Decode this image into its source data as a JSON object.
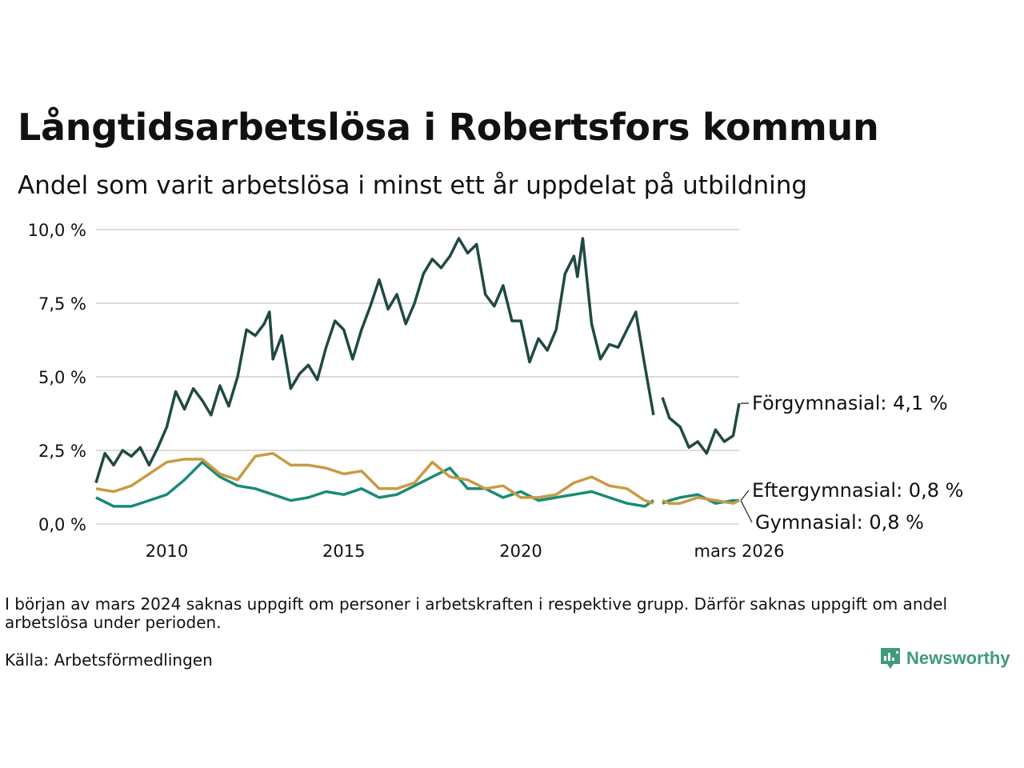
{
  "title": "Långtidsarbetslösa i Robertsfors kommun",
  "subtitle": "Andel som varit arbetslösa i minst ett år uppdelat på utbildning",
  "footnote": "I början av mars 2024 saknas uppgift om personer i arbetskraften i respektive grupp. Därför saknas uppgift om andel arbetslösa under perioden.",
  "source": "Källa: Arbetsförmedlingen",
  "logo_text": "Newsworthy",
  "chart_data": {
    "type": "line",
    "title": "Långtidsarbetslösa i Robertsfors kommun",
    "ylim": [
      0,
      10
    ],
    "y_ticks": [
      0,
      2.5,
      5,
      7.5,
      10
    ],
    "y_tick_labels": [
      "0,0 %",
      "2,5 %",
      "5,0 %",
      "7,5 %",
      "10,0 %"
    ],
    "x_range": [
      2008.0,
      2026.17
    ],
    "x_ticks": [
      2010,
      2015,
      2020,
      2026.17
    ],
    "x_tick_labels": [
      "2010",
      "2015",
      "2020",
      "mars 2026"
    ],
    "gap": [
      2023.75,
      2024.0
    ],
    "series": [
      {
        "name": "Förgymnasial",
        "label": "Förgymnasial: 4,1 %",
        "color": "#1f4a43",
        "points": [
          [
            2008.0,
            1.4
          ],
          [
            2008.25,
            2.4
          ],
          [
            2008.5,
            2.0
          ],
          [
            2008.75,
            2.5
          ],
          [
            2009.0,
            2.3
          ],
          [
            2009.25,
            2.6
          ],
          [
            2009.5,
            2.0
          ],
          [
            2009.75,
            2.6
          ],
          [
            2010.0,
            3.3
          ],
          [
            2010.25,
            4.5
          ],
          [
            2010.5,
            3.9
          ],
          [
            2010.75,
            4.6
          ],
          [
            2011.0,
            4.2
          ],
          [
            2011.25,
            3.7
          ],
          [
            2011.5,
            4.7
          ],
          [
            2011.75,
            4.0
          ],
          [
            2012.0,
            5.0
          ],
          [
            2012.25,
            6.6
          ],
          [
            2012.5,
            6.4
          ],
          [
            2012.75,
            6.8
          ],
          [
            2012.9,
            7.2
          ],
          [
            2013.0,
            5.6
          ],
          [
            2013.25,
            6.4
          ],
          [
            2013.5,
            4.6
          ],
          [
            2013.75,
            5.1
          ],
          [
            2014.0,
            5.4
          ],
          [
            2014.25,
            4.9
          ],
          [
            2014.5,
            6.0
          ],
          [
            2014.75,
            6.9
          ],
          [
            2015.0,
            6.6
          ],
          [
            2015.25,
            5.6
          ],
          [
            2015.5,
            6.6
          ],
          [
            2015.75,
            7.4
          ],
          [
            2016.0,
            8.3
          ],
          [
            2016.25,
            7.3
          ],
          [
            2016.5,
            7.8
          ],
          [
            2016.75,
            6.8
          ],
          [
            2017.0,
            7.5
          ],
          [
            2017.25,
            8.5
          ],
          [
            2017.5,
            9.0
          ],
          [
            2017.75,
            8.7
          ],
          [
            2018.0,
            9.1
          ],
          [
            2018.25,
            9.7
          ],
          [
            2018.5,
            9.2
          ],
          [
            2018.75,
            9.5
          ],
          [
            2019.0,
            7.8
          ],
          [
            2019.25,
            7.4
          ],
          [
            2019.5,
            8.1
          ],
          [
            2019.75,
            6.9
          ],
          [
            2020.0,
            6.9
          ],
          [
            2020.25,
            5.5
          ],
          [
            2020.5,
            6.3
          ],
          [
            2020.75,
            5.9
          ],
          [
            2021.0,
            6.6
          ],
          [
            2021.25,
            8.5
          ],
          [
            2021.5,
            9.1
          ],
          [
            2021.6,
            8.4
          ],
          [
            2021.75,
            9.7
          ],
          [
            2022.0,
            6.8
          ],
          [
            2022.25,
            5.6
          ],
          [
            2022.5,
            6.1
          ],
          [
            2022.75,
            6.0
          ],
          [
            2023.0,
            6.6
          ],
          [
            2023.25,
            7.2
          ],
          [
            2023.5,
            5.4
          ],
          [
            2023.75,
            3.7
          ],
          [
            2024.0,
            4.3
          ],
          [
            2024.2,
            3.6
          ],
          [
            2024.5,
            3.3
          ],
          [
            2024.75,
            2.6
          ],
          [
            2025.0,
            2.8
          ],
          [
            2025.25,
            2.4
          ],
          [
            2025.5,
            3.2
          ],
          [
            2025.75,
            2.8
          ],
          [
            2026.0,
            3.0
          ],
          [
            2026.17,
            4.1
          ]
        ]
      },
      {
        "name": "Eftergymnasial",
        "label": "Eftergymnasial: 0,8 %",
        "color": "#c89a42",
        "points": [
          [
            2008.0,
            1.2
          ],
          [
            2008.5,
            1.1
          ],
          [
            2009.0,
            1.3
          ],
          [
            2009.5,
            1.7
          ],
          [
            2010.0,
            2.1
          ],
          [
            2010.5,
            2.2
          ],
          [
            2011.0,
            2.2
          ],
          [
            2011.5,
            1.7
          ],
          [
            2012.0,
            1.5
          ],
          [
            2012.5,
            2.3
          ],
          [
            2013.0,
            2.4
          ],
          [
            2013.5,
            2.0
          ],
          [
            2014.0,
            2.0
          ],
          [
            2014.5,
            1.9
          ],
          [
            2015.0,
            1.7
          ],
          [
            2015.5,
            1.8
          ],
          [
            2016.0,
            1.2
          ],
          [
            2016.5,
            1.2
          ],
          [
            2017.0,
            1.4
          ],
          [
            2017.5,
            2.1
          ],
          [
            2018.0,
            1.6
          ],
          [
            2018.5,
            1.5
          ],
          [
            2019.0,
            1.2
          ],
          [
            2019.5,
            1.3
          ],
          [
            2020.0,
            0.9
          ],
          [
            2020.5,
            0.9
          ],
          [
            2021.0,
            1.0
          ],
          [
            2021.5,
            1.4
          ],
          [
            2022.0,
            1.6
          ],
          [
            2022.5,
            1.3
          ],
          [
            2023.0,
            1.2
          ],
          [
            2023.5,
            0.8
          ],
          [
            2023.75,
            0.7
          ],
          [
            2024.0,
            0.8
          ],
          [
            2024.2,
            0.7
          ],
          [
            2024.5,
            0.7
          ],
          [
            2025.0,
            0.9
          ],
          [
            2025.5,
            0.8
          ],
          [
            2026.0,
            0.7
          ],
          [
            2026.17,
            0.8
          ]
        ]
      },
      {
        "name": "Gymnasial",
        "label": "Gymnasial: 0,8 %",
        "color": "#1a8a78",
        "points": [
          [
            2008.0,
            0.9
          ],
          [
            2008.5,
            0.6
          ],
          [
            2009.0,
            0.6
          ],
          [
            2009.5,
            0.8
          ],
          [
            2010.0,
            1.0
          ],
          [
            2010.5,
            1.5
          ],
          [
            2011.0,
            2.1
          ],
          [
            2011.5,
            1.6
          ],
          [
            2012.0,
            1.3
          ],
          [
            2012.5,
            1.2
          ],
          [
            2013.0,
            1.0
          ],
          [
            2013.5,
            0.8
          ],
          [
            2014.0,
            0.9
          ],
          [
            2014.5,
            1.1
          ],
          [
            2015.0,
            1.0
          ],
          [
            2015.5,
            1.2
          ],
          [
            2016.0,
            0.9
          ],
          [
            2016.5,
            1.0
          ],
          [
            2017.0,
            1.3
          ],
          [
            2017.5,
            1.6
          ],
          [
            2018.0,
            1.9
          ],
          [
            2018.5,
            1.2
          ],
          [
            2019.0,
            1.2
          ],
          [
            2019.5,
            0.9
          ],
          [
            2020.0,
            1.1
          ],
          [
            2020.5,
            0.8
          ],
          [
            2021.0,
            0.9
          ],
          [
            2021.5,
            1.0
          ],
          [
            2022.0,
            1.1
          ],
          [
            2022.5,
            0.9
          ],
          [
            2023.0,
            0.7
          ],
          [
            2023.5,
            0.6
          ],
          [
            2023.75,
            0.8
          ],
          [
            2024.0,
            0.7
          ],
          [
            2024.2,
            0.8
          ],
          [
            2024.5,
            0.9
          ],
          [
            2025.0,
            1.0
          ],
          [
            2025.5,
            0.7
          ],
          [
            2026.0,
            0.8
          ],
          [
            2026.17,
            0.8
          ]
        ]
      }
    ]
  }
}
